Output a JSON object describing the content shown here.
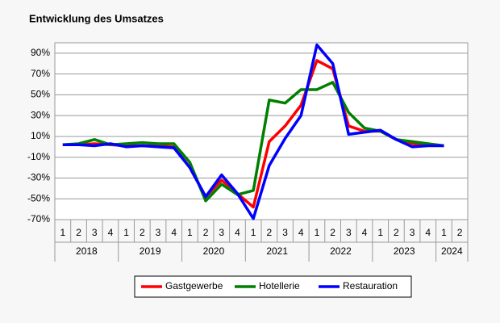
{
  "chart_data": {
    "type": "line",
    "title": "Entwicklung des Umsatzes",
    "categories": [
      "1",
      "2",
      "3",
      "4",
      "1",
      "2",
      "3",
      "4",
      "1",
      "2",
      "3",
      "4",
      "1",
      "2",
      "3",
      "4",
      "1",
      "2",
      "3",
      "4",
      "1",
      "2",
      "3",
      "4",
      "1",
      "2"
    ],
    "years": [
      "2018",
      "2019",
      "2020",
      "2021",
      "2022",
      "2023",
      "2024"
    ],
    "series": [
      {
        "name": "Gastgewerbe",
        "color": "#ff0000",
        "values": [
          2,
          2,
          3,
          2,
          1,
          1,
          1,
          0,
          -20,
          -48,
          -32,
          -45,
          -58,
          5,
          20,
          40,
          83,
          75,
          20,
          15,
          15,
          7,
          3,
          2,
          1,
          null
        ]
      },
      {
        "name": "Hotellerie",
        "color": "#008000",
        "values": [
          2,
          3,
          7,
          2,
          3,
          4,
          3,
          3,
          -15,
          -52,
          -36,
          -46,
          -42,
          45,
          42,
          55,
          55,
          62,
          33,
          18,
          15,
          7,
          5,
          3,
          1,
          null
        ]
      },
      {
        "name": "Restauration",
        "color": "#0000ff",
        "values": [
          2,
          2,
          1,
          3,
          0,
          1,
          0,
          -1,
          -20,
          -48,
          -27,
          -45,
          -69,
          -18,
          8,
          30,
          98,
          80,
          12,
          14,
          16,
          7,
          0,
          1,
          1,
          null
        ]
      }
    ],
    "ylim": [
      -70,
      100
    ],
    "yticks": [
      {
        "value": 90,
        "label": "90%"
      },
      {
        "value": 70,
        "label": "70%"
      },
      {
        "value": 50,
        "label": "50%"
      },
      {
        "value": 30,
        "label": "30%"
      },
      {
        "value": 10,
        "label": "10%"
      },
      {
        "value": -10,
        "label": "-10%"
      },
      {
        "value": -30,
        "label": "-30%"
      },
      {
        "value": -50,
        "label": "-50%"
      },
      {
        "value": -70,
        "label": "-70%"
      }
    ],
    "grid": true,
    "legend": "bottom"
  }
}
